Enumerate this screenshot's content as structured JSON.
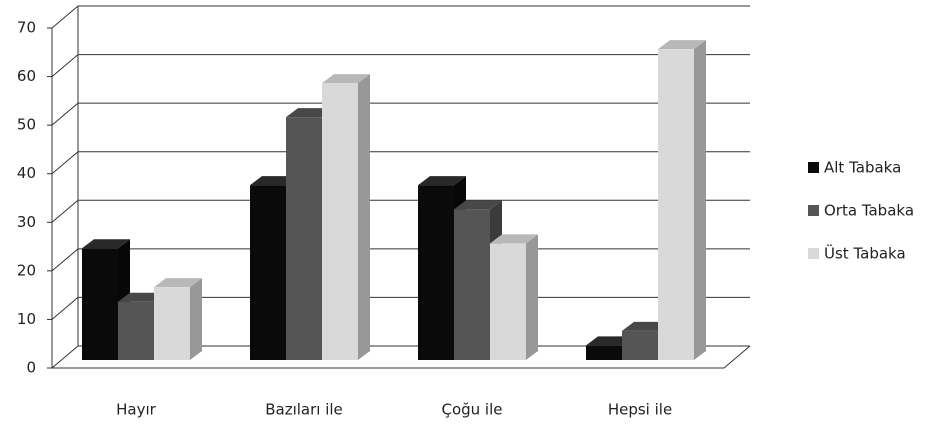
{
  "chart_data": {
    "type": "bar3d",
    "categories": [
      "Hayır",
      "Bazıları ile",
      "Çoğu ile",
      "Hepsi ile"
    ],
    "series": [
      {
        "name": "Alt Tabaka",
        "color": "#0a0a0a",
        "values": [
          23,
          36,
          36,
          3
        ]
      },
      {
        "name": "Orta Tabaka",
        "color": "#555555",
        "values": [
          12,
          50,
          31,
          6
        ]
      },
      {
        "name": "Üst Tabaka",
        "color": "#d9d9d9",
        "values": [
          15,
          57,
          24,
          64
        ]
      }
    ],
    "ylim": [
      0,
      70
    ],
    "yticks": [
      0,
      10,
      20,
      30,
      40,
      50,
      60,
      70
    ],
    "grid": true,
    "legend": "right"
  }
}
